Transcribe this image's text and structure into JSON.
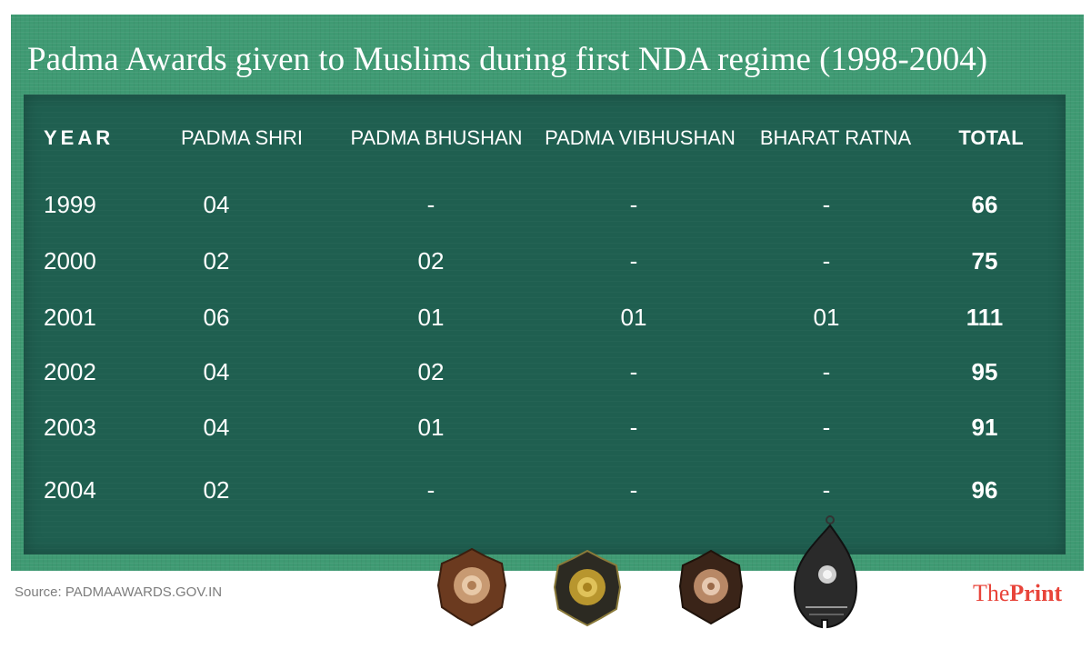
{
  "title": "Padma Awards given to Muslims during first NDA regime (1998-2004)",
  "source": "Source: PADMAAWARDS.GOV.IN",
  "brand": {
    "part1": "The",
    "part2": "Print",
    "color": "#e8443a"
  },
  "colors": {
    "frame": "#3f9a73",
    "panel": "#1f5f50",
    "text": "#ffffff"
  },
  "medals": [
    "padma-shri-medal-icon",
    "padma-bhushan-medal-icon",
    "padma-vibhushan-medal-icon",
    "bharat-ratna-medal-icon"
  ],
  "chart_data": {
    "type": "table",
    "title": "Padma Awards given to Muslims during first NDA regime (1998-2004)",
    "columns": [
      "YEAR",
      "PADMA SHRI",
      "PADMA BHUSHAN",
      "PADMA VIBHUSHAN",
      "BHARAT RATNA",
      "TOTAL"
    ],
    "rows": [
      [
        "1999",
        "04",
        "-",
        "-",
        "-",
        "66"
      ],
      [
        "2000",
        "02",
        "02",
        "-",
        "-",
        "75"
      ],
      [
        "2001",
        "06",
        "01",
        "01",
        "01",
        "111"
      ],
      [
        "2002",
        "04",
        "02",
        "-",
        "-",
        "95"
      ],
      [
        "2003",
        "04",
        "01",
        "-",
        "-",
        "91"
      ],
      [
        "2004",
        "02",
        "-",
        "-",
        "-",
        "96"
      ]
    ]
  }
}
